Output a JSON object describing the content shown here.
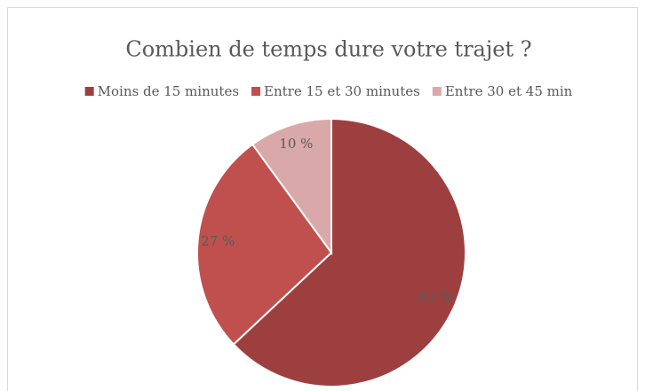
{
  "chart_data": {
    "type": "pie",
    "title": "Combien de temps dure votre trajet ?",
    "categories": [
      "Moins de 15 minutes",
      "Entre 15 et 30 minutes",
      "Entre 30 et 45 min"
    ],
    "values": [
      63,
      27,
      10
    ],
    "value_labels": [
      "63 %",
      "27 %",
      "10 %"
    ],
    "colors": [
      "#9e3f3f",
      "#c0504d",
      "#d9a9a9"
    ],
    "legend": "top"
  }
}
